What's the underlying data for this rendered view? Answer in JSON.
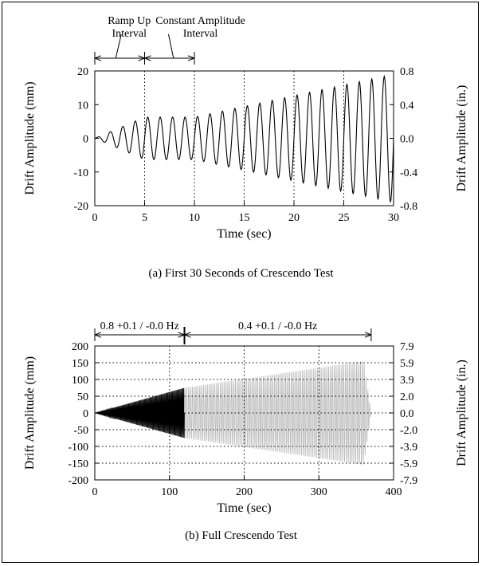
{
  "chart_data": [
    {
      "type": "line",
      "xlabel": "Time (sec)",
      "ylabel": "Drift Amplitude (mm)",
      "y2label": "Drift Amplitude (in.)",
      "xlim": [
        0,
        30
      ],
      "ylim": [
        -20,
        20
      ],
      "x_ticks": [
        "0",
        "5",
        "10",
        "15",
        "20",
        "25",
        "30"
      ],
      "y_ticks": [
        "-20",
        "-10",
        "0",
        "10",
        "20"
      ],
      "y2_ticks": [
        "-0.8",
        "-0.4",
        "0.0",
        "0.4",
        "0.8"
      ],
      "grid": "dotted vertical lines at x = 5, 10, 15, 20, 25",
      "annotations": [
        {
          "text_lines": [
            "Ramp Up",
            "Interval"
          ],
          "from_x": 0,
          "to_x": 5
        },
        {
          "text_lines": [
            "Constant Amplitude",
            "Interval"
          ],
          "from_x": 5,
          "to_x": 10
        }
      ],
      "series": [
        {
          "frequency_hz": 0.8,
          "color": "#000000",
          "envelope": {
            "x": [
              0,
              5,
              10,
              30
            ],
            "amplitude_mm": [
              0,
              6.3,
              6.3,
              19
            ]
          }
        }
      ],
      "caption": "(a) First 30 Seconds of Crescendo Test"
    },
    {
      "type": "line",
      "xlabel": "Time (sec)",
      "ylabel": "Drift Amplitude (mm)",
      "y2label": "Drift Amplitude (in.)",
      "xlim": [
        0,
        400
      ],
      "ylim": [
        -200,
        200
      ],
      "x_ticks": [
        "0",
        "100",
        "200",
        "300",
        "400"
      ],
      "y_ticks": [
        "-200",
        "-150",
        "-100",
        "-50",
        "0",
        "50",
        "100",
        "150",
        "200"
      ],
      "y2_ticks": [
        "-7.9",
        "-5.9",
        "-3.9",
        "-2.0",
        "0.0",
        "2.0",
        "3.9",
        "5.9",
        "7.9"
      ],
      "grid": "dotted vertical and horizontal grid",
      "annotations": [
        {
          "text": "0.8 +0.1 / -0.0 Hz",
          "from_x": 0,
          "to_x": 120
        },
        {
          "text": "0.4 +0.1 / -0.0 Hz",
          "from_x": 120,
          "to_x": 370
        }
      ],
      "series": [
        {
          "frequency_hz": 0.8,
          "color": "#000000",
          "envelope": {
            "x": [
              0,
              120
            ],
            "amplitude_mm": [
              0,
              75
            ]
          }
        },
        {
          "frequency_hz": 0.4,
          "color": "#bbbbbb",
          "envelope": {
            "x": [
              120,
              360,
              370
            ],
            "amplitude_mm": [
              75,
              155,
              0
            ]
          }
        }
      ],
      "caption": "(b) Full Crescendo Test"
    }
  ]
}
